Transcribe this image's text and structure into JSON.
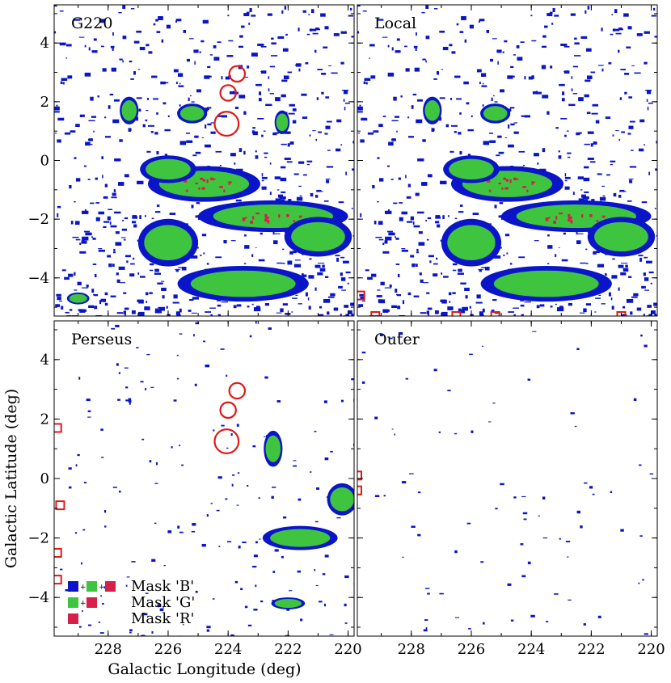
{
  "chart_data": {
    "type": "heatmap",
    "description_type": "multi-panel emission mask maps",
    "xlabel": "Galactic Longitude (deg)",
    "ylabel": "Galactic Latitude (deg)",
    "xlim": [
      229.8,
      219.8
    ],
    "ylim": [
      -5.3,
      5.3
    ],
    "xticks": [
      228,
      226,
      224,
      222,
      220
    ],
    "yticks": [
      -4,
      -2,
      0,
      2,
      4
    ],
    "xtick_labels": [
      "228",
      "226",
      "224",
      "222",
      "220"
    ],
    "ytick_labels": [
      "−4",
      "−2",
      "0",
      "2",
      "4"
    ],
    "colors": {
      "B": "#0a14c8",
      "G": "#3ec43e",
      "R": "#d81e4a",
      "marker": "#e01818"
    },
    "panels": [
      {
        "title": "G220",
        "density": 1.0,
        "circles": [
          {
            "l": 223.7,
            "b": 2.95,
            "r": 0.13
          },
          {
            "l": 224.0,
            "b": 2.3,
            "r": 0.13
          },
          {
            "l": 224.05,
            "b": 1.25,
            "r": 0.2
          }
        ],
        "squares": [],
        "blobs": [
          {
            "l": 224.8,
            "b": -0.8,
            "w": 3.0,
            "h": 0.9,
            "level": "R"
          },
          {
            "l": 222.5,
            "b": -1.9,
            "w": 4.0,
            "h": 0.8,
            "level": "R"
          },
          {
            "l": 226.0,
            "b": -0.3,
            "w": 1.5,
            "h": 0.7,
            "level": "G"
          },
          {
            "l": 221.0,
            "b": -2.6,
            "w": 1.8,
            "h": 1.0,
            "level": "G"
          },
          {
            "l": 226.0,
            "b": -2.8,
            "w": 1.6,
            "h": 1.2,
            "level": "G"
          },
          {
            "l": 223.5,
            "b": -4.2,
            "w": 3.5,
            "h": 0.9,
            "level": "G"
          },
          {
            "l": 227.3,
            "b": 1.7,
            "w": 0.5,
            "h": 0.7,
            "level": "G"
          },
          {
            "l": 225.2,
            "b": 1.6,
            "w": 0.8,
            "h": 0.5,
            "level": "G"
          },
          {
            "l": 222.2,
            "b": 1.3,
            "w": 0.4,
            "h": 0.6,
            "level": "G"
          },
          {
            "l": 229.0,
            "b": -4.7,
            "w": 0.6,
            "h": 0.3,
            "level": "G"
          }
        ]
      },
      {
        "title": "Local",
        "density": 0.9,
        "circles": [],
        "squares": [
          {
            "l": 229.7,
            "b": -4.6
          },
          {
            "l": 229.2,
            "b": -5.3
          },
          {
            "l": 226.5,
            "b": -5.3
          },
          {
            "l": 225.2,
            "b": -5.3
          },
          {
            "l": 221.0,
            "b": -5.3
          }
        ],
        "blobs": [
          {
            "l": 224.8,
            "b": -0.8,
            "w": 3.0,
            "h": 0.9,
            "level": "R"
          },
          {
            "l": 222.5,
            "b": -1.9,
            "w": 4.0,
            "h": 0.8,
            "level": "R"
          },
          {
            "l": 226.0,
            "b": -0.3,
            "w": 1.5,
            "h": 0.7,
            "level": "G"
          },
          {
            "l": 221.0,
            "b": -2.6,
            "w": 1.8,
            "h": 1.0,
            "level": "G"
          },
          {
            "l": 226.0,
            "b": -2.8,
            "w": 1.6,
            "h": 1.2,
            "level": "G"
          },
          {
            "l": 223.5,
            "b": -4.2,
            "w": 3.5,
            "h": 0.9,
            "level": "G"
          },
          {
            "l": 227.3,
            "b": 1.7,
            "w": 0.5,
            "h": 0.7,
            "level": "G"
          },
          {
            "l": 225.2,
            "b": 1.6,
            "w": 0.8,
            "h": 0.5,
            "level": "G"
          }
        ]
      },
      {
        "title": "Perseus",
        "density": 0.25,
        "circles": [
          {
            "l": 223.7,
            "b": 2.95,
            "r": 0.13
          },
          {
            "l": 224.0,
            "b": 2.3,
            "r": 0.13
          },
          {
            "l": 224.05,
            "b": 1.25,
            "r": 0.2
          }
        ],
        "squares": [
          {
            "l": 229.7,
            "b": 1.7
          },
          {
            "l": 229.6,
            "b": -0.9
          },
          {
            "l": 229.7,
            "b": -2.5
          },
          {
            "l": 229.7,
            "b": -3.4
          }
        ],
        "blobs": [
          {
            "l": 221.6,
            "b": -2.0,
            "w": 2.0,
            "h": 0.6,
            "level": "G"
          },
          {
            "l": 222.5,
            "b": 1.0,
            "w": 0.5,
            "h": 0.9,
            "level": "G"
          },
          {
            "l": 220.2,
            "b": -0.7,
            "w": 0.8,
            "h": 0.8,
            "level": "G"
          },
          {
            "l": 222.0,
            "b": -4.2,
            "w": 0.9,
            "h": 0.3,
            "level": "G"
          }
        ],
        "legend": [
          {
            "label": "Mask 'B'",
            "swatches": [
              "B",
              "G",
              "R"
            ]
          },
          {
            "label": "Mask 'G'",
            "swatches": [
              "G",
              "R"
            ]
          },
          {
            "label": "Mask 'R'",
            "swatches": [
              "R"
            ]
          }
        ]
      },
      {
        "title": "Outer",
        "density": 0.12,
        "circles": [],
        "squares": [
          {
            "l": 229.8,
            "b": 0.1
          },
          {
            "l": 229.8,
            "b": -0.4
          }
        ],
        "blobs": []
      }
    ]
  }
}
